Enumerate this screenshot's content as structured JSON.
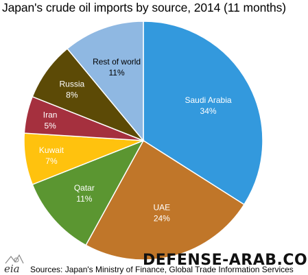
{
  "chart_data": {
    "type": "pie",
    "title": "Japan's crude oil imports by source, 2014 (11 months)",
    "slices": [
      {
        "label": "Saudi Arabia",
        "value": 34,
        "value_label": "34%",
        "color": "#3399dd",
        "text_color": "#ffffff"
      },
      {
        "label": "UAE",
        "value": 24,
        "value_label": "24%",
        "color": "#c07629",
        "text_color": "#ffffff"
      },
      {
        "label": "Qatar",
        "value": 11,
        "value_label": "11%",
        "color": "#5b9631",
        "text_color": "#ffffff"
      },
      {
        "label": "Kuwait",
        "value": 7,
        "value_label": "7%",
        "color": "#ffc20e",
        "text_color": "#ffffff"
      },
      {
        "label": "Iran",
        "value": 5,
        "value_label": "5%",
        "color": "#a5303e",
        "text_color": "#ffffff"
      },
      {
        "label": "Russia",
        "value": 8,
        "value_label": "8%",
        "color": "#5c4a06",
        "text_color": "#ffffff"
      },
      {
        "label": "Rest of world",
        "value": 11,
        "value_label": "11%",
        "color": "#8fb8e2",
        "text_color": "#000000"
      }
    ]
  },
  "source": "Sources: Japan's Ministry of Finance, Global Trade Information Services",
  "watermark": "DEFENSE-ARAB.COM",
  "logo_text": "eia"
}
